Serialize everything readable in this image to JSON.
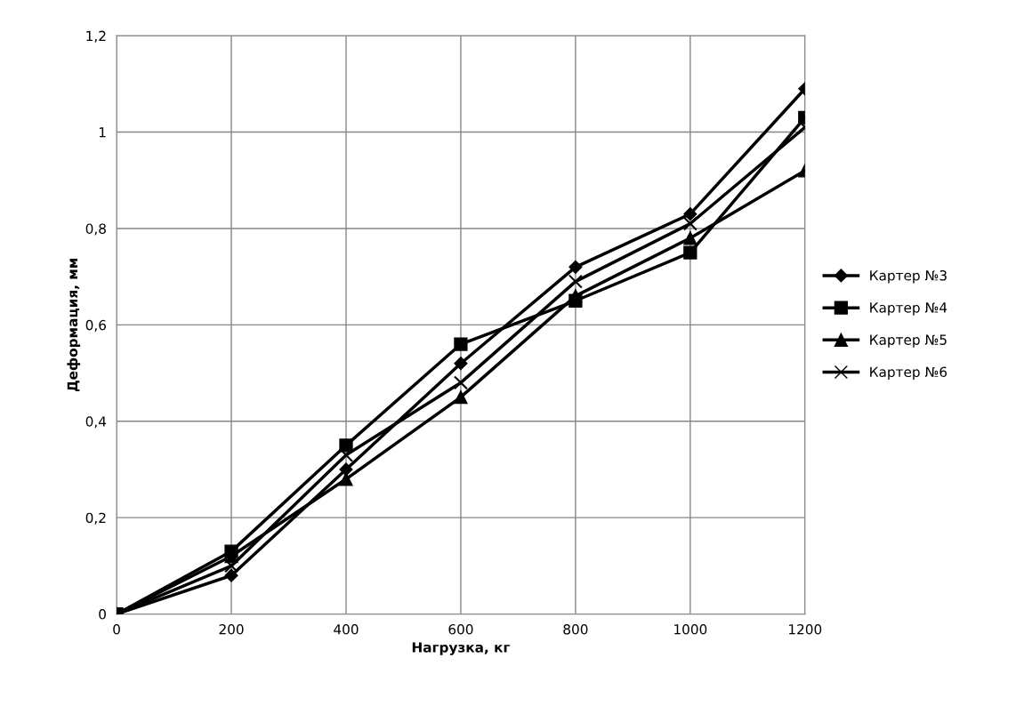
{
  "chart_data": {
    "type": "line",
    "xlabel": "Нагрузка, кг",
    "ylabel": "Деформация, мм",
    "x": [
      0,
      200,
      400,
      600,
      800,
      1000,
      1200
    ],
    "series": [
      {
        "name": "Картер №3",
        "color": "#000000",
        "marker": "diamond",
        "values": [
          0,
          0.08,
          0.3,
          0.52,
          0.72,
          0.83,
          1.09
        ]
      },
      {
        "name": "Картер №4",
        "color": "#000000",
        "marker": "square",
        "values": [
          0,
          0.13,
          0.35,
          0.56,
          0.65,
          0.75,
          1.03
        ]
      },
      {
        "name": "Картер №5",
        "color": "#000000",
        "marker": "triangle",
        "values": [
          0,
          0.12,
          0.28,
          0.45,
          0.66,
          0.78,
          0.92
        ]
      },
      {
        "name": "Картер №6",
        "color": "#000000",
        "marker": "cross",
        "values": [
          0,
          0.1,
          0.33,
          0.48,
          0.69,
          0.81,
          1.01
        ]
      }
    ],
    "xlim": [
      0,
      1200
    ],
    "xticks": [
      0,
      200,
      400,
      600,
      800,
      1000,
      1200
    ],
    "ylim": [
      0,
      1.2
    ],
    "yticks": [
      0,
      {
        "value": 0.2,
        "label": "0,2"
      },
      {
        "value": 0.4,
        "label": "0,4"
      },
      {
        "value": 0.6,
        "label": "0,6"
      },
      {
        "value": 0.8,
        "label": "0,8"
      },
      1,
      {
        "value": 1.2,
        "label": "1,2"
      }
    ],
    "grid": true,
    "legend": "right",
    "line_style": "solid"
  }
}
